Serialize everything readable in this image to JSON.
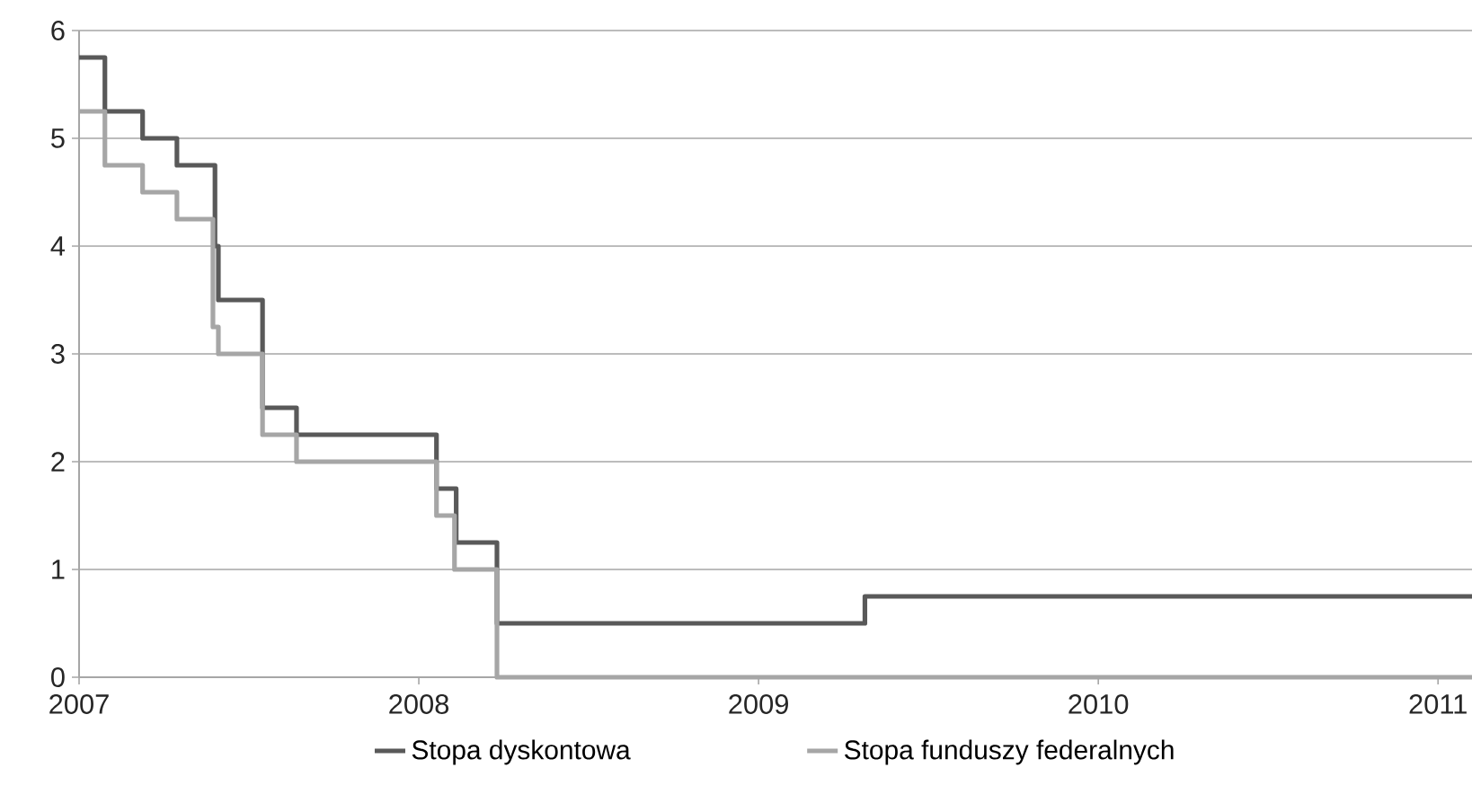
{
  "chart_data": {
    "type": "step",
    "series": [
      {
        "name": "Stopa dyskontowa",
        "color": "#595959",
        "x": [
          2007,
          2007.076,
          2007.187,
          2007.288,
          2007.4,
          2007.41,
          2007.54,
          2007.64,
          2008.052,
          2008.11,
          2008.23,
          2009.313,
          2011.1
        ],
        "values": [
          5.75,
          5.25,
          5,
          4.75,
          4,
          3.5,
          2.5,
          2.25,
          1.75,
          1.25,
          0.5,
          0.75,
          0.75
        ]
      },
      {
        "name": "Stopa funduszy federalnych",
        "color": "#a6a6a6",
        "x": [
          2007,
          2007.076,
          2007.187,
          2007.288,
          2007.394,
          2007.41,
          2007.54,
          2007.64,
          2008.052,
          2008.105,
          2008.23,
          2011.1
        ],
        "values": [
          5.25,
          4.75,
          4.5,
          4.25,
          3.25,
          3,
          2.25,
          2,
          1.5,
          1,
          0,
          0
        ]
      }
    ],
    "xlim": [
      2007,
      2011.1
    ],
    "ylim": [
      0,
      6
    ],
    "xticks": [
      2007,
      2008,
      2009,
      2010,
      2011
    ],
    "yticks": [
      0,
      1,
      2,
      3,
      4,
      5,
      6
    ],
    "grid": "y",
    "legend": "bottom"
  }
}
